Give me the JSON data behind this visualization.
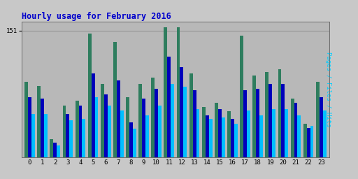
{
  "title": "Hourly usage for February 2016",
  "ylabel": "Pages / Files / Hits",
  "hours": [
    0,
    1,
    2,
    3,
    4,
    5,
    6,
    7,
    8,
    9,
    10,
    11,
    12,
    13,
    14,
    15,
    16,
    17,
    18,
    19,
    20,
    21,
    22,
    23
  ],
  "pages": [
    90,
    85,
    22,
    62,
    68,
    148,
    88,
    138,
    72,
    88,
    95,
    155,
    155,
    100,
    60,
    65,
    55,
    145,
    98,
    102,
    105,
    70,
    40,
    90
  ],
  "files": [
    72,
    70,
    18,
    52,
    62,
    100,
    75,
    92,
    42,
    70,
    82,
    120,
    108,
    80,
    50,
    58,
    46,
    80,
    82,
    88,
    88,
    65,
    35,
    72
  ],
  "hits": [
    52,
    52,
    14,
    44,
    46,
    72,
    62,
    56,
    34,
    50,
    62,
    88,
    84,
    58,
    46,
    48,
    40,
    56,
    50,
    58,
    58,
    50,
    38,
    56
  ],
  "color_pages": "#2e7d5e",
  "color_files": "#0000bb",
  "color_hits": "#00bfff",
  "bg_color": "#c8c8c8",
  "plot_bg": "#b8b8b8",
  "title_color": "#0000cc",
  "ylabel_color": "#00cfff",
  "ylim_max": 162,
  "ytick_val": 151,
  "ytick_label": "151",
  "bar_width": 0.27,
  "figwidth": 5.12,
  "figheight": 2.56,
  "dpi": 100
}
